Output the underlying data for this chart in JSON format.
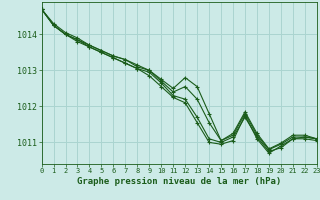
{
  "title": "Graphe pression niveau de la mer (hPa)",
  "background_color": "#cceae7",
  "grid_color": "#aad4d0",
  "line_color": "#1a5c1a",
  "xlim": [
    0,
    23
  ],
  "ylim": [
    1010.4,
    1014.9
  ],
  "yticks": [
    1011,
    1012,
    1013,
    1014
  ],
  "xticks": [
    0,
    1,
    2,
    3,
    4,
    5,
    6,
    7,
    8,
    9,
    10,
    11,
    12,
    13,
    14,
    15,
    16,
    17,
    18,
    19,
    20,
    21,
    22,
    23
  ],
  "series": [
    [
      1014.7,
      1014.25,
      1014.0,
      1013.8,
      1013.65,
      1013.5,
      1013.35,
      1013.2,
      1013.05,
      1012.85,
      1012.55,
      1012.25,
      1012.1,
      1011.55,
      1011.0,
      1010.95,
      1011.05,
      1011.75,
      1011.1,
      1010.7,
      1010.9,
      1011.1,
      1011.1,
      1011.05
    ],
    [
      1014.7,
      1014.25,
      1014.0,
      1013.85,
      1013.65,
      1013.5,
      1013.35,
      1013.2,
      1013.05,
      1012.95,
      1012.65,
      1012.3,
      1012.2,
      1011.7,
      1011.1,
      1011.0,
      1011.15,
      1011.7,
      1011.15,
      1010.75,
      1010.85,
      1011.1,
      1011.15,
      1011.1
    ],
    [
      1014.7,
      1014.25,
      1014.0,
      1013.85,
      1013.7,
      1013.55,
      1013.4,
      1013.3,
      1013.1,
      1013.0,
      1012.7,
      1012.4,
      1012.55,
      1012.2,
      1011.55,
      1011.05,
      1011.2,
      1011.8,
      1011.2,
      1010.8,
      1010.95,
      1011.15,
      1011.15,
      1011.1
    ],
    [
      1014.7,
      1014.3,
      1014.05,
      1013.9,
      1013.7,
      1013.55,
      1013.4,
      1013.3,
      1013.15,
      1013.0,
      1012.75,
      1012.5,
      1012.8,
      1012.55,
      1011.8,
      1011.05,
      1011.25,
      1011.85,
      1011.25,
      1010.82,
      1010.98,
      1011.2,
      1011.2,
      1011.1
    ]
  ]
}
